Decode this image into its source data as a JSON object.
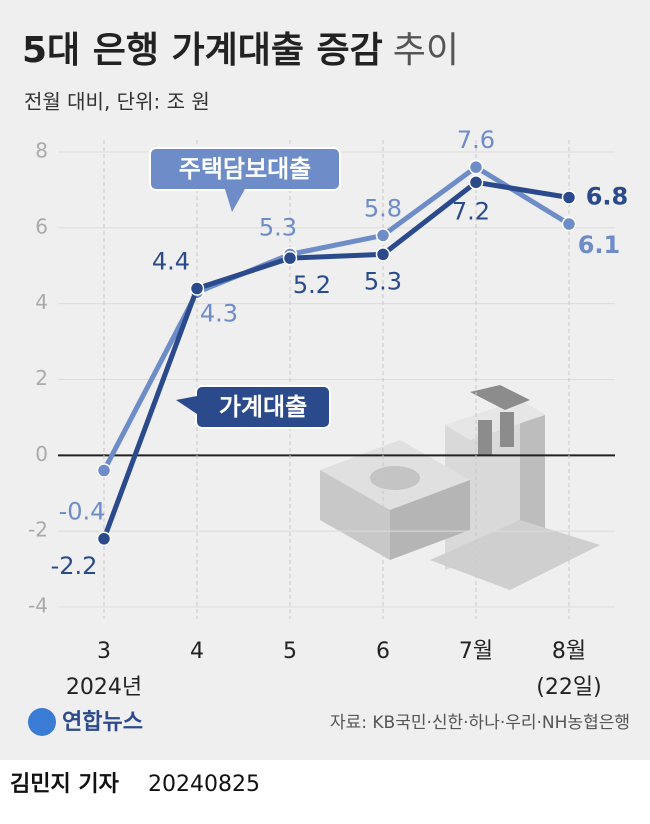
{
  "chart_data": {
    "type": "line",
    "title": "5대 은행 가계대출 증감",
    "title_suffix": "추이",
    "subtitle": "전월 대비, 단위: 조 원",
    "categories": [
      "3",
      "4",
      "5",
      "6",
      "7월",
      "8월"
    ],
    "x_notes": [
      {
        "index": 0,
        "text": "2024년"
      },
      {
        "index": 5,
        "text": "(22일)"
      }
    ],
    "series": [
      {
        "name": "주택담보대출",
        "color": "#6d8cc8",
        "values": [
          -0.4,
          4.3,
          5.3,
          5.8,
          7.6,
          6.1
        ]
      },
      {
        "name": "가계대출",
        "color": "#2b4a8c",
        "values": [
          -2.2,
          4.4,
          5.2,
          5.3,
          7.2,
          6.8
        ]
      }
    ],
    "ylim": [
      -4,
      8
    ],
    "yticks": [
      -4,
      -2,
      0,
      2,
      4,
      6,
      8
    ],
    "grid": true,
    "source": "자료: KB국민·신한·하나·우리·NH농협은행",
    "logo": "연합뉴스",
    "byline": "김민지 기자",
    "date": "20240825"
  }
}
